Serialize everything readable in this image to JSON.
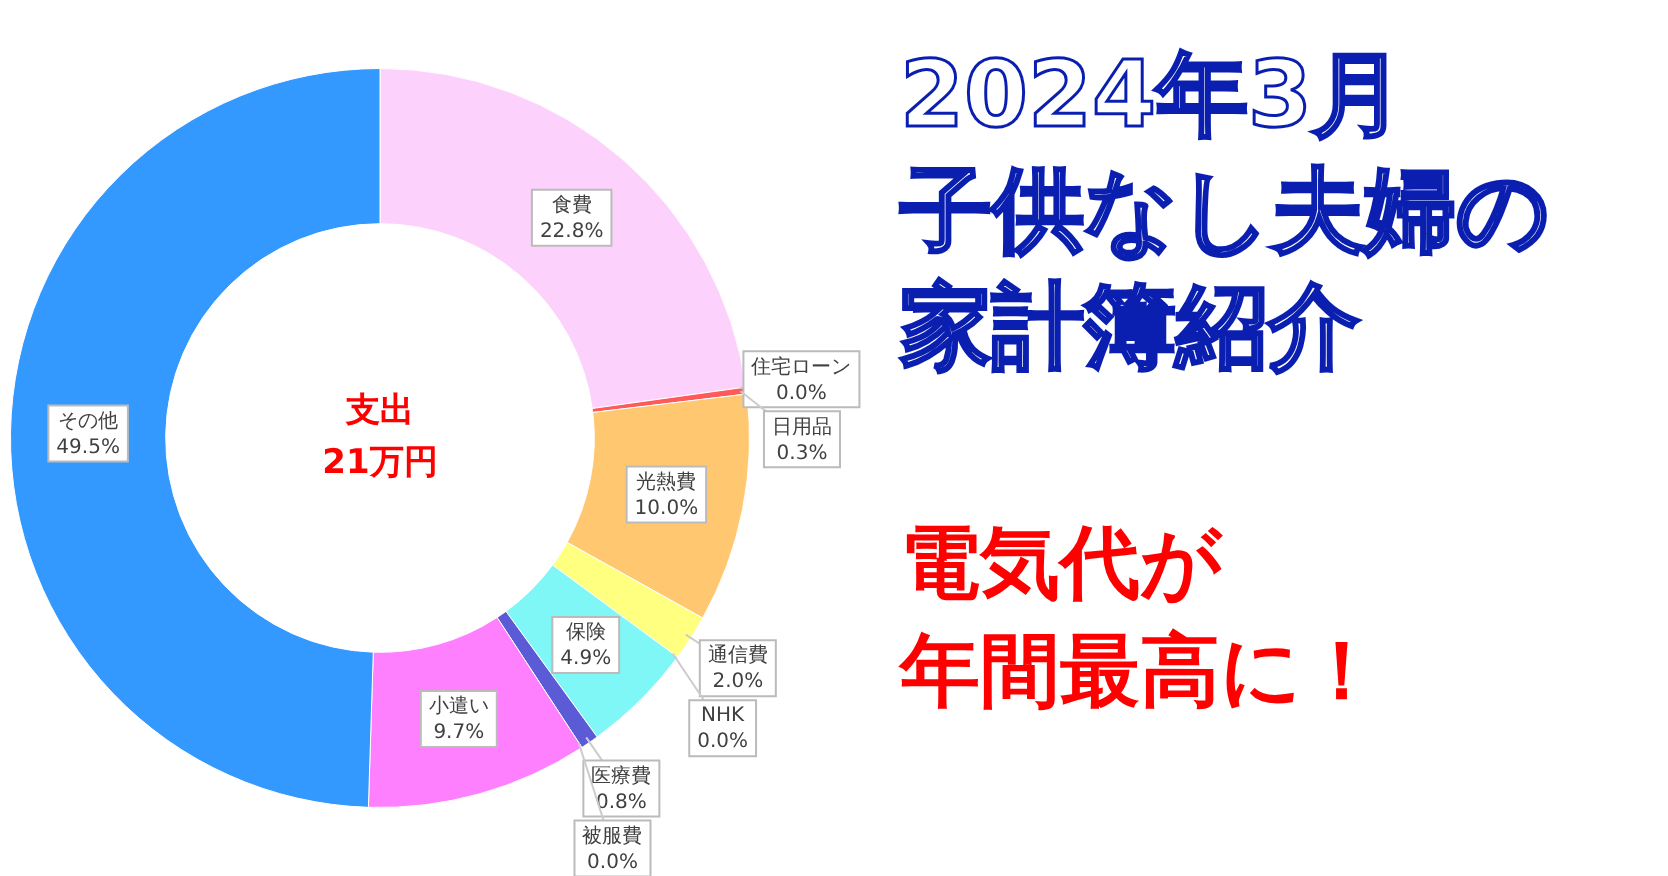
{
  "chart_data": {
    "type": "donut",
    "title": "2024年3月",
    "subtitle": "子供なし夫婦の家計簿紹介",
    "annotations": [
      "支出",
      "21万円",
      "電気代が",
      "年間最高に！"
    ],
    "categories": [
      "食費",
      "住宅ローン",
      "日用品",
      "光熱費",
      "通信費",
      "NHK",
      "保険",
      "医療費",
      "被服費",
      "小遣い",
      "その他"
    ],
    "values": [
      22.8,
      0.0,
      0.3,
      10.0,
      2.0,
      0.0,
      4.9,
      0.8,
      0.0,
      9.7,
      49.5
    ],
    "value_labels": [
      "22.8%",
      "0.0%",
      "0.3%",
      "10.0%",
      "2.0%",
      "0.0%",
      "4.9%",
      "0.8%",
      "0.0%",
      "9.7%",
      "49.5%"
    ],
    "colors": [
      "#fcd2fc",
      "#9966cc",
      "#ff5a5a",
      "#ffc870",
      "#ffff80",
      "#c0c0c0",
      "#7ff7f7",
      "#5b5bd6",
      "#999999",
      "#ff80ff",
      "#3399ff"
    ],
    "legend": false
  }
}
